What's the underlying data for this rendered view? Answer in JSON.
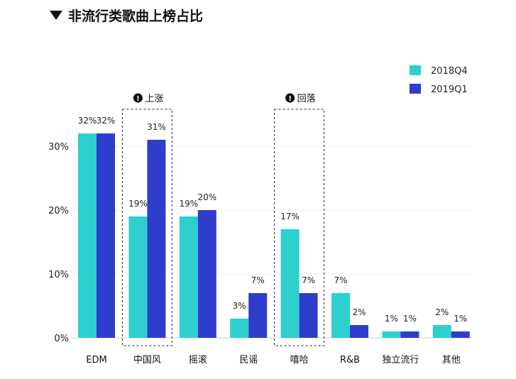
{
  "header": {
    "title": "非流行类歌曲上榜占比"
  },
  "chart_data": {
    "type": "bar",
    "title": "非流行类歌曲上榜占比",
    "xlabel": "",
    "ylabel": "",
    "ylim": [
      0,
      35
    ],
    "yticks": [
      0,
      10,
      20,
      30
    ],
    "ytick_labels": [
      "0%",
      "10%",
      "20%",
      "30%"
    ],
    "grid": true,
    "legend_position": "top-right",
    "categories": [
      "EDM",
      "中国风",
      "摇滚",
      "民谣",
      "嘻哈",
      "R&B",
      "独立流行",
      "其他"
    ],
    "series": [
      {
        "name": "2018Q4",
        "color": "#2ecfcf",
        "values": [
          32,
          19,
          19,
          3,
          17,
          7,
          1,
          2
        ],
        "labels": [
          "32%",
          "19%",
          "19%",
          "3%",
          "17%",
          "7%",
          "1%",
          "2%"
        ]
      },
      {
        "name": "2019Q1",
        "color": "#2e3dcc",
        "values": [
          32,
          31,
          20,
          7,
          7,
          2,
          1,
          1
        ],
        "labels": [
          "32%",
          "31%",
          "20%",
          "7%",
          "7%",
          "2%",
          "1%",
          "1%"
        ]
      }
    ],
    "annotations": [
      {
        "category": "中国风",
        "text": "上涨"
      },
      {
        "category": "嘻哈",
        "text": "回落"
      }
    ]
  }
}
